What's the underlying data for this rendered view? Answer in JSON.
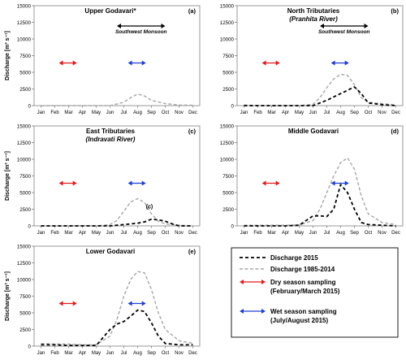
{
  "colors": {
    "dry_arrow": "#e41a1c",
    "wet_arrow": "#1f3fd6",
    "discharge_2015": "#000000",
    "discharge_hist": "#a6a6a6",
    "axis": "#7f7f7f"
  },
  "months": [
    "Jan",
    "Feb",
    "Mar",
    "Apr",
    "May",
    "Jun",
    "Jul",
    "Aug",
    "Sep",
    "Oct",
    "Nov",
    "Dec"
  ],
  "ylabel": "Discharge [m³ s⁻¹]",
  "legend": {
    "items": [
      {
        "label": "Discharge 2015",
        "style": "discharge_2015"
      },
      {
        "label": "Discharge 1985-2014",
        "style": "discharge_hist"
      },
      {
        "label": "Dry season sampling",
        "sublabel": "(February/March 2015)",
        "style": "dry_arrow"
      },
      {
        "label": "Wet season sampling",
        "sublabel": "(July/August 2015)",
        "style": "wet_arrow"
      }
    ]
  },
  "chart_data": [
    {
      "type": "line",
      "title": "Upper Godavari*",
      "subtitle": "",
      "tag": "(a)",
      "ylim": [
        0,
        15000
      ],
      "yticks": [
        0,
        2500,
        5000,
        7500,
        10000,
        12500,
        15000
      ],
      "show_yticklabels": true,
      "show_ylabel": true,
      "monsoon_label": "Southwest Monsoon",
      "monsoon_range": [
        5.5,
        9.0
      ],
      "dry_arrow": [
        1.3,
        2.6
      ],
      "wet_arrow": [
        6.3,
        7.6
      ],
      "annotation": "",
      "series": [
        {
          "name": "Discharge 1985-2014",
          "style": "discharge_hist",
          "x": [
            0,
            1,
            2,
            3,
            4,
            5,
            6,
            6.5,
            7,
            7.5,
            8,
            9,
            10,
            11
          ],
          "y": [
            0,
            0,
            0,
            0,
            0,
            0,
            500,
            1200,
            1750,
            1450,
            800,
            300,
            100,
            50
          ]
        },
        {
          "name": "Discharge 2015",
          "style": "discharge_2015",
          "x": [],
          "y": []
        }
      ]
    },
    {
      "type": "line",
      "title": "North Tributaries",
      "subtitle": "(Pranhita River)",
      "tag": "(b)",
      "ylim": [
        0,
        15000
      ],
      "yticks": [
        0,
        2500,
        5000,
        7500,
        10000,
        12500,
        15000
      ],
      "show_yticklabels": true,
      "show_ylabel": false,
      "monsoon_label": "Southwest Monsoon",
      "monsoon_range": [
        5.5,
        9.0
      ],
      "dry_arrow": [
        1.3,
        2.6
      ],
      "wet_arrow": [
        6.3,
        7.6
      ],
      "annotation": "",
      "series": [
        {
          "name": "Discharge 1985-2014",
          "style": "discharge_hist",
          "x": [
            0,
            1,
            2,
            3,
            4,
            5,
            5.5,
            6,
            6.5,
            7,
            7.5,
            8,
            8.5,
            9,
            10,
            11
          ],
          "y": [
            100,
            0,
            0,
            0,
            0,
            200,
            1200,
            2700,
            4000,
            4700,
            4550,
            3100,
            1200,
            500,
            300,
            100
          ]
        },
        {
          "name": "Discharge 2015",
          "style": "discharge_2015",
          "x": [
            0,
            1,
            2,
            3,
            4,
            5,
            6,
            7,
            7.5,
            8,
            8.5,
            9,
            10,
            11
          ],
          "y": [
            0,
            0,
            0,
            0,
            0,
            0,
            800,
            1800,
            2300,
            2800,
            1800,
            400,
            150,
            0
          ]
        }
      ]
    },
    {
      "type": "line",
      "title": "East Tributaries",
      "subtitle": "(Indravati River)",
      "tag": "(c)",
      "ylim": [
        0,
        15000
      ],
      "yticks": [
        0,
        2500,
        5000,
        7500,
        10000,
        12500,
        15000
      ],
      "show_yticklabels": true,
      "show_ylabel": true,
      "monsoon_label": "",
      "monsoon_range": [],
      "dry_arrow": [
        1.3,
        2.6
      ],
      "wet_arrow": [
        6.3,
        7.6
      ],
      "annotation": "(c)",
      "series": [
        {
          "name": "Discharge 1985-2014",
          "style": "discharge_hist",
          "x": [
            0,
            1,
            2,
            3,
            4,
            5,
            5.5,
            6,
            6.5,
            7,
            7.5,
            8,
            8.5,
            9,
            10,
            11
          ],
          "y": [
            0,
            0,
            0,
            0,
            0,
            200,
            800,
            2200,
            3600,
            4100,
            3500,
            1800,
            700,
            300,
            100,
            0
          ]
        },
        {
          "name": "Discharge 2015",
          "style": "discharge_2015",
          "x": [
            0,
            1,
            2,
            3,
            4,
            5,
            6,
            7,
            7.5,
            8,
            8.5,
            9,
            9.5,
            10,
            11
          ],
          "y": [
            0,
            0,
            0,
            0,
            0,
            0,
            200,
            400,
            600,
            1000,
            900,
            700,
            300,
            0,
            0
          ]
        }
      ]
    },
    {
      "type": "line",
      "title": "Middle Godavari",
      "subtitle": "",
      "tag": "(d)",
      "ylim": [
        0,
        15000
      ],
      "yticks": [
        0,
        2500,
        5000,
        7500,
        10000,
        12500,
        15000
      ],
      "show_yticklabels": true,
      "show_ylabel": false,
      "monsoon_label": "",
      "monsoon_range": [],
      "dry_arrow": [
        1.3,
        2.6
      ],
      "wet_arrow": [
        6.3,
        7.6
      ],
      "annotation": "",
      "series": [
        {
          "name": "Discharge 1985-2014",
          "style": "discharge_hist",
          "x": [
            0,
            1,
            2,
            3,
            4,
            5,
            5.5,
            6,
            6.5,
            7,
            7.5,
            8,
            8.5,
            9,
            10,
            11
          ],
          "y": [
            100,
            100,
            100,
            100,
            150,
            800,
            2500,
            5000,
            7500,
            9500,
            10200,
            8500,
            4500,
            1800,
            500,
            200
          ]
        },
        {
          "name": "Discharge 2015",
          "style": "discharge_2015",
          "x": [
            0,
            1,
            2,
            3,
            4,
            5,
            5.5,
            6,
            6.5,
            7,
            7.5,
            8,
            8.5,
            9,
            10,
            11
          ],
          "y": [
            0,
            0,
            0,
            0,
            100,
            1500,
            1500,
            1400,
            2500,
            6200,
            5000,
            2500,
            500,
            200,
            100,
            0
          ]
        }
      ]
    },
    {
      "type": "line",
      "title": "Lower Godavari",
      "subtitle": "",
      "tag": "(e)",
      "ylim": [
        0,
        15000
      ],
      "yticks": [
        0,
        2500,
        5000,
        7500,
        10000,
        12500,
        15000
      ],
      "show_yticklabels": true,
      "show_ylabel": true,
      "monsoon_label": "",
      "monsoon_range": [],
      "dry_arrow": [
        1.3,
        2.6
      ],
      "wet_arrow": [
        6.3,
        7.6
      ],
      "annotation": "",
      "series": [
        {
          "name": "Discharge 1985-2014",
          "style": "discharge_hist",
          "x": [
            0,
            1,
            2,
            3,
            4,
            5,
            5.5,
            6,
            6.5,
            7,
            7.5,
            8,
            8.5,
            9,
            10,
            11
          ],
          "y": [
            400,
            300,
            300,
            200,
            200,
            1500,
            4000,
            7500,
            10000,
            11200,
            11000,
            8500,
            5000,
            2500,
            800,
            400
          ]
        },
        {
          "name": "Discharge 2015",
          "style": "discharge_2015",
          "x": [
            0,
            1,
            2,
            3,
            4,
            5,
            5.5,
            6,
            6.5,
            7,
            7.5,
            8,
            8.5,
            9,
            10,
            11
          ],
          "y": [
            200,
            200,
            100,
            100,
            100,
            2500,
            3300,
            3700,
            4500,
            5400,
            5200,
            3500,
            1500,
            400,
            200,
            200
          ]
        }
      ]
    }
  ]
}
